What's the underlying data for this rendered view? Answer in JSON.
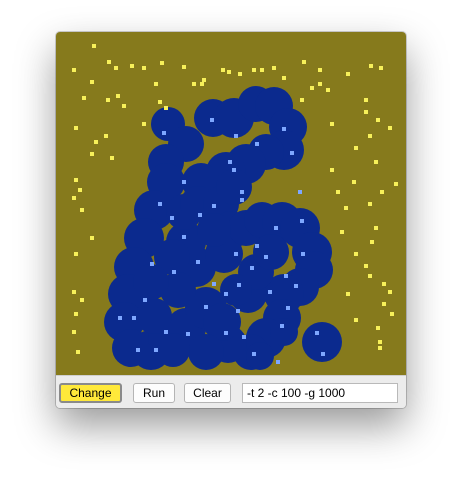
{
  "colors": {
    "background": "#867a1c",
    "blob": "#0b2a8e",
    "inner_dot": "#7ea7ff",
    "outer_dot": "#f7f05a",
    "active_button": "#ffe93a"
  },
  "toolbar": {
    "change_label": "Change",
    "run_label": "Run",
    "clear_label": "Clear",
    "args_value": "-t 2 -c 100 -g 1000"
  }
}
